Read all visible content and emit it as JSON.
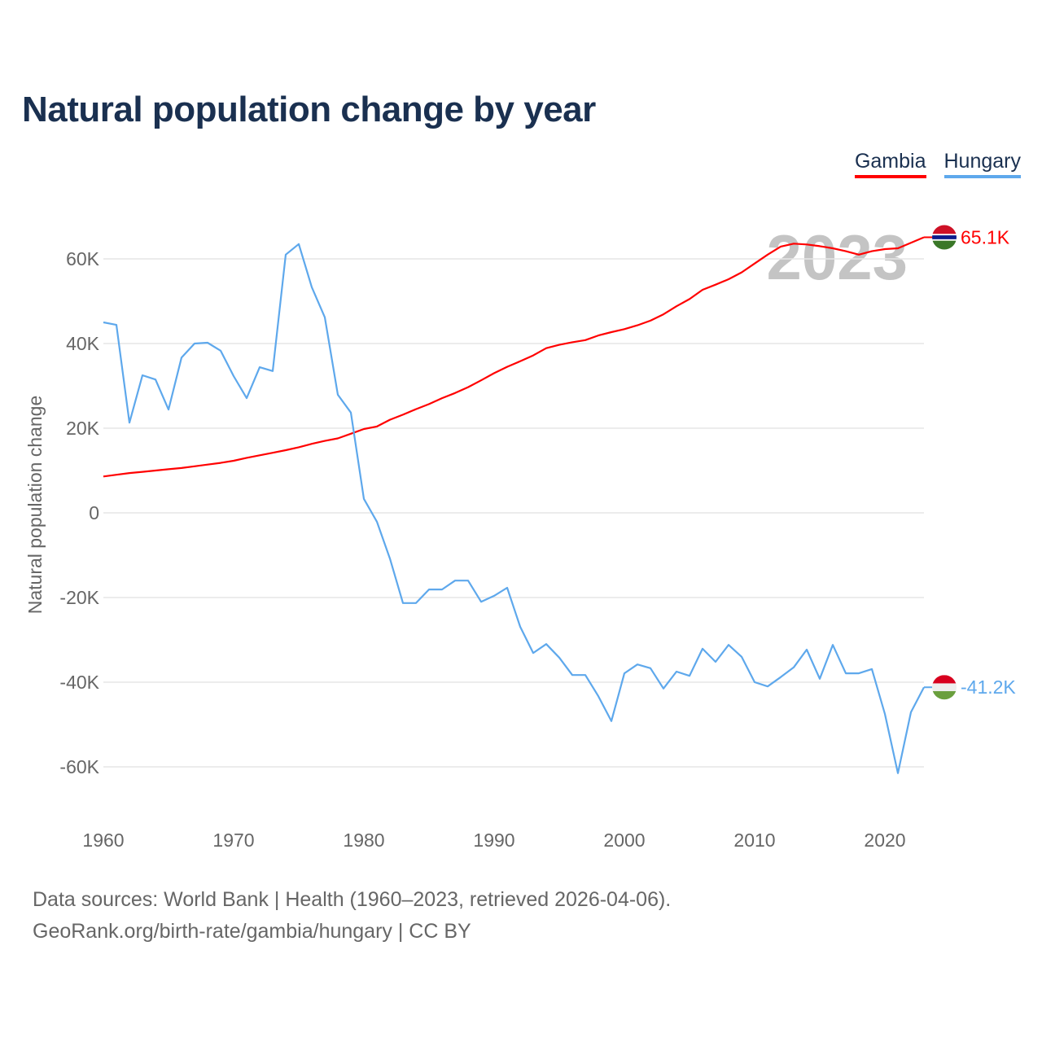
{
  "title": "Natural population change by year",
  "legend": [
    {
      "name": "Gambia",
      "color": "#ff0000"
    },
    {
      "name": "Hungary",
      "color": "#5ea8ec"
    }
  ],
  "year_watermark": "2023",
  "footer": {
    "line1": "Data sources: World Bank | Health (1960–2023, retrieved 2026-04-06).",
    "line2": "GeoRank.org/birth-rate/gambia/hungary | CC BY"
  },
  "chart_data": {
    "type": "line",
    "title": "Natural population change by year",
    "xlabel": "",
    "ylabel": "Natural population change",
    "xlim": [
      1960,
      2023
    ],
    "ylim": [
      -70000,
      70000
    ],
    "x_ticks": [
      1960,
      1970,
      1980,
      1990,
      2000,
      2010,
      2020
    ],
    "y_ticks": [
      {
        "v": 60000,
        "label": "60K"
      },
      {
        "v": 40000,
        "label": "40K"
      },
      {
        "v": 20000,
        "label": "20K"
      },
      {
        "v": 0,
        "label": "0"
      },
      {
        "v": -20000,
        "label": "-20K"
      },
      {
        "v": -40000,
        "label": "-40K"
      },
      {
        "v": -60000,
        "label": "-60K"
      }
    ],
    "grid": true,
    "legend_position": "top-right",
    "x_start": 1960,
    "series": [
      {
        "name": "Gambia",
        "color": "#ff0000",
        "end_label": "65.1K",
        "values_k": [
          8.6,
          9.0,
          9.4,
          9.7,
          10.0,
          10.3,
          10.6,
          11.0,
          11.4,
          11.8,
          12.3,
          13.0,
          13.6,
          14.2,
          14.8,
          15.5,
          16.3,
          17.0,
          17.6,
          18.7,
          19.8,
          20.4,
          22.0,
          23.2,
          24.5,
          25.7,
          27.1,
          28.3,
          29.7,
          31.3,
          33.0,
          34.5,
          35.8,
          37.2,
          38.9,
          39.7,
          40.3,
          40.8,
          41.9,
          42.7,
          43.4,
          44.3,
          45.4,
          46.9,
          48.8,
          50.5,
          52.7,
          53.9,
          55.2,
          56.8,
          58.9,
          61.0,
          62.9,
          63.6,
          63.4,
          63.0,
          62.5,
          61.8,
          61.0,
          61.8,
          62.3,
          62.5,
          63.8,
          65.1
        ]
      },
      {
        "name": "Hungary",
        "color": "#5ea8ec",
        "end_label": "-41.2K",
        "values_k": [
          45.0,
          44.4,
          21.3,
          32.5,
          31.5,
          24.4,
          36.7,
          40.0,
          40.2,
          38.3,
          32.3,
          27.1,
          34.4,
          33.5,
          61.0,
          63.5,
          53.3,
          46.2,
          27.9,
          23.7,
          3.3,
          -2.1,
          -10.8,
          -21.3,
          -21.3,
          -18.1,
          -18.1,
          -16.0,
          -16.0,
          -21.0,
          -19.6,
          -17.7,
          -26.9,
          -33.1,
          -31.0,
          -34.2,
          -38.3,
          -38.3,
          -43.3,
          -49.2,
          -37.9,
          -35.8,
          -36.7,
          -41.5,
          -37.5,
          -38.5,
          -32.1,
          -35.2,
          -31.2,
          -34.0,
          -40.0,
          -41.0,
          -38.8,
          -36.5,
          -32.3,
          -39.2,
          -31.2,
          -37.9,
          -37.9,
          -36.9,
          -47.5,
          -61.5,
          -47.1,
          -41.2
        ]
      }
    ]
  }
}
